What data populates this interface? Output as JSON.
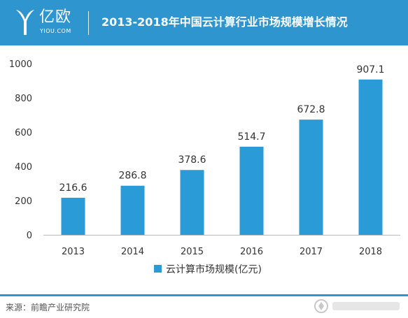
{
  "header": {
    "brand": "亿欧",
    "brand_sub": "YIOU.COM",
    "title": "2013-2018年中国云计算行业市场规模增长情况"
  },
  "colors": {
    "accent": "#2f95cf",
    "bar": "#2a9bd6"
  },
  "chart_data": {
    "type": "bar",
    "categories": [
      "2013",
      "2014",
      "2015",
      "2016",
      "2017",
      "2018"
    ],
    "series": [
      {
        "name": "云计算市场规模(亿元)",
        "values": [
          216.6,
          286.8,
          378.6,
          514.7,
          672.8,
          907.1
        ]
      }
    ],
    "data_labels": [
      "216.6",
      "286.8",
      "378.6",
      "514.7",
      "672.8",
      "907.1"
    ],
    "yticks": [
      0,
      200,
      400,
      600,
      800,
      1000
    ],
    "ylim": [
      0,
      1000
    ],
    "title": "",
    "xlabel": "",
    "ylabel": "",
    "grid": false,
    "legend_position": "bottom"
  },
  "footer": {
    "source": "来源：前瞻产业研究院"
  }
}
